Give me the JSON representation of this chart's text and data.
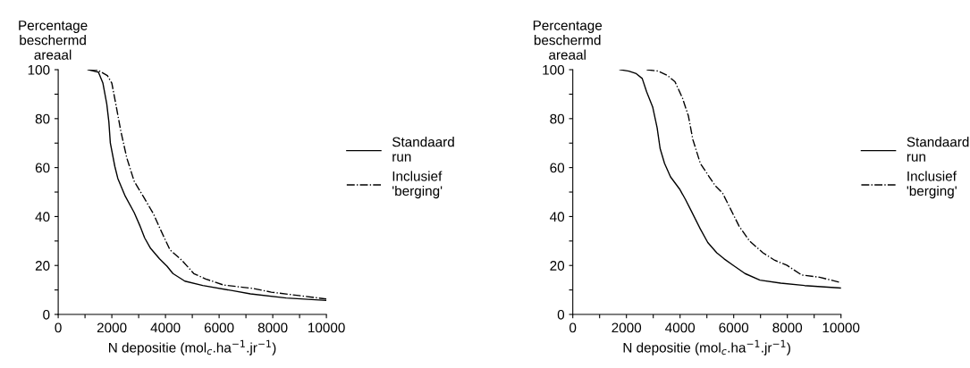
{
  "chart_data": [
    {
      "type": "line",
      "ylabel": "Percentage\nbeschermd\nareaal",
      "xlabel": "N depositie (mol$_{c}$.ha$^{−1}$.jr$^{−1}$)",
      "xlim": [
        0,
        10000
      ],
      "ylim": [
        0,
        100
      ],
      "xticks": [
        0,
        {
          "value": 1000,
          "label": null
        },
        2000,
        {
          "value": 3000,
          "label": null
        },
        4000,
        {
          "value": 5000,
          "label": null
        },
        6000,
        {
          "value": 7000,
          "label": null
        },
        8000,
        {
          "value": 9000,
          "label": null
        },
        10000
      ],
      "yticks": [
        0,
        {
          "value": 10,
          "label": null
        },
        20,
        {
          "value": 30,
          "label": null
        },
        40,
        {
          "value": 50,
          "label": null
        },
        60,
        {
          "value": 70,
          "label": null
        },
        80,
        {
          "value": 90,
          "label": null
        },
        100
      ],
      "grid": false,
      "legend": "right",
      "marker": "none",
      "series": [
        {
          "name": "Standaard\nrun",
          "color": "#000000",
          "line_style": "solid",
          "x": [
            1111,
            1500,
            1667,
            1811,
            1889,
            1944,
            2111,
            2222,
            2500,
            2833,
            3056,
            3222,
            3444,
            3778,
            4056,
            4278,
            4722,
            5389,
            6500,
            7167,
            8500,
            10000
          ],
          "values": [
            100,
            99,
            94.5,
            86,
            78.7,
            70,
            60.5,
            55.6,
            48.3,
            41.6,
            36,
            31.3,
            27,
            22.7,
            19.7,
            16.7,
            13.6,
            11.8,
            9.7,
            8.4,
            6.7,
            5.7
          ]
        },
        {
          "name": "Inclusief\n'berging'",
          "color": "#000000",
          "line_style": "dashdot",
          "x": [
            1167,
            1444,
            1833,
            2000,
            2167,
            2333,
            2556,
            2833,
            3167,
            3556,
            3778,
            4167,
            4611,
            5056,
            5500,
            6167,
            7278,
            7944,
            10000
          ],
          "values": [
            100,
            100,
            97.6,
            94.5,
            84.8,
            75,
            64,
            54.4,
            48.3,
            41,
            35.5,
            26.4,
            22.1,
            16.7,
            14.5,
            12,
            10.6,
            9.1,
            6.3
          ]
        }
      ]
    },
    {
      "type": "line",
      "ylabel": "Percentage\nbeschermd\nareaal",
      "xlabel": "N depositie (mol$_{c}$.ha$^{−1}$.jr$^{−1}$)",
      "xlim": [
        0,
        10000
      ],
      "ylim": [
        0,
        100
      ],
      "xticks": [
        0,
        {
          "value": 1000,
          "label": null
        },
        2000,
        {
          "value": 3000,
          "label": null
        },
        4000,
        {
          "value": 5000,
          "label": null
        },
        6000,
        {
          "value": 7000,
          "label": null
        },
        8000,
        {
          "value": 9000,
          "label": null
        },
        10000
      ],
      "yticks": [
        0,
        {
          "value": 10,
          "label": null
        },
        20,
        {
          "value": 30,
          "label": null
        },
        40,
        {
          "value": 50,
          "label": null
        },
        60,
        {
          "value": 70,
          "label": null
        },
        80,
        {
          "value": 90,
          "label": null
        },
        100
      ],
      "grid": false,
      "legend": "right",
      "marker": "none",
      "series": [
        {
          "name": "Standaard\nrun",
          "color": "#000000",
          "line_style": "solid",
          "x": [
            1756,
            2089,
            2367,
            2589,
            2756,
            2978,
            3144,
            3256,
            3422,
            3644,
            3978,
            4200,
            4422,
            4756,
            5033,
            5367,
            5644,
            5978,
            6422,
            6978,
            7756,
            8644,
            10000
          ],
          "values": [
            100,
            99.4,
            98.4,
            96.4,
            90.9,
            84.8,
            76.3,
            67.8,
            61.7,
            56.2,
            51.3,
            47,
            42.2,
            34.9,
            29.4,
            25.2,
            22.7,
            20.1,
            16.7,
            14,
            12.8,
            11.8,
            10.8
          ]
        },
        {
          "name": "Inclusief\n'berging'",
          "color": "#000000",
          "line_style": "dashdot",
          "x": [
            2756,
            3200,
            3533,
            3811,
            4089,
            4311,
            4478,
            4756,
            5089,
            5311,
            5589,
            5867,
            6200,
            6589,
            7089,
            7533,
            7978,
            8533,
            9200,
            10000
          ],
          "values": [
            100,
            99.4,
            97.6,
            95.1,
            88.4,
            81.1,
            71.4,
            61.7,
            56.2,
            52.6,
            49.5,
            43.4,
            36.1,
            30,
            25.2,
            22.1,
            20.1,
            16.1,
            15.2,
            13
          ]
        }
      ]
    }
  ]
}
